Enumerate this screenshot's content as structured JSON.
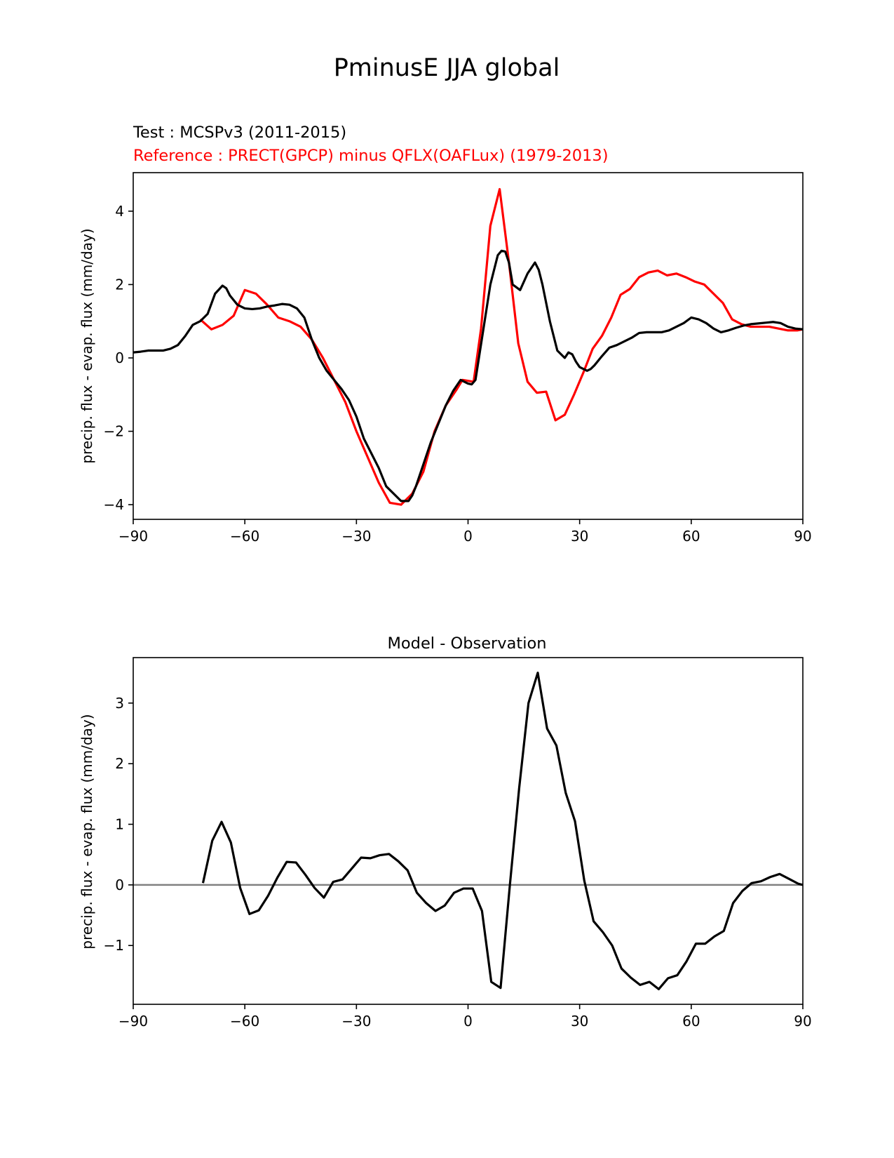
{
  "figure": {
    "suptitle": "PminusE JJA global"
  },
  "chart_data": [
    {
      "type": "line",
      "title_test": "Test : MCSPv3 (2011-2015)",
      "title_ref": "Reference : PRECT(GPCP) minus QFLX(OAFLux) (1979-2013)",
      "xlabel": "",
      "ylabel": "precip. flux - evap. flux (mm/day)",
      "xlim": [
        -90,
        90
      ],
      "ylim": [
        -4.4,
        5.05
      ],
      "xticks": [
        -90,
        -60,
        -30,
        0,
        30,
        60,
        90
      ],
      "xtick_labels": [
        "−90",
        "−60",
        "−30",
        "0",
        "30",
        "60",
        "90"
      ],
      "yticks": [
        -4,
        -2,
        0,
        2,
        4
      ],
      "ytick_labels": [
        "−4",
        "−2",
        "0",
        "2",
        "4"
      ],
      "colors": {
        "test": "#000000",
        "reference": "#ff0000"
      },
      "series": [
        {
          "key": "test",
          "x": [
            -90,
            -88,
            -86,
            -84,
            -82,
            -80,
            -78,
            -76,
            -74,
            -72,
            -70,
            -68,
            -66,
            -65,
            -64,
            -62,
            -60,
            -58,
            -56,
            -54,
            -52,
            -50,
            -48,
            -46,
            -44,
            -42,
            -40,
            -38,
            -36,
            -34,
            -32,
            -30,
            -28,
            -26,
            -24,
            -22,
            -20,
            -18,
            -16,
            -15,
            -14,
            -13,
            -12,
            -10,
            -8,
            -6,
            -4,
            -2,
            0,
            1,
            2,
            4,
            6,
            8,
            9,
            10,
            11,
            12,
            14,
            16,
            18,
            19,
            20,
            22,
            24,
            26,
            27,
            28,
            29,
            30,
            32,
            33,
            34,
            36,
            38,
            40,
            42,
            44,
            46,
            48,
            50,
            52,
            54,
            56,
            58,
            60,
            62,
            64,
            66,
            68,
            70,
            72,
            74,
            76,
            78,
            80,
            82,
            84,
            86,
            88,
            90
          ],
          "values": [
            0.15,
            0.17,
            0.2,
            0.2,
            0.2,
            0.25,
            0.35,
            0.6,
            0.9,
            1.0,
            1.2,
            1.75,
            1.97,
            1.9,
            1.7,
            1.45,
            1.35,
            1.33,
            1.35,
            1.4,
            1.43,
            1.47,
            1.45,
            1.35,
            1.1,
            0.5,
            0.0,
            -0.35,
            -0.6,
            -0.85,
            -1.15,
            -1.6,
            -2.2,
            -2.6,
            -3.0,
            -3.5,
            -3.7,
            -3.9,
            -3.9,
            -3.75,
            -3.5,
            -3.2,
            -2.9,
            -2.3,
            -1.8,
            -1.3,
            -0.9,
            -0.6,
            -0.7,
            -0.72,
            -0.6,
            0.7,
            2.0,
            2.8,
            2.92,
            2.9,
            2.6,
            2.0,
            1.85,
            2.3,
            2.6,
            2.4,
            2.0,
            1.0,
            0.2,
            0.0,
            0.15,
            0.1,
            -0.1,
            -0.25,
            -0.35,
            -0.3,
            -0.2,
            0.05,
            0.28,
            0.35,
            0.45,
            0.55,
            0.68,
            0.7,
            0.7,
            0.7,
            0.75,
            0.85,
            0.95,
            1.1,
            1.05,
            0.95,
            0.8,
            0.7,
            0.75,
            0.82,
            0.88,
            0.92,
            0.94,
            0.96,
            0.98,
            0.95,
            0.85,
            0.8,
            0.78
          ]
        },
        {
          "key": "reference",
          "x": [
            -72,
            -69,
            -66,
            -63,
            -60,
            -57,
            -54,
            -51,
            -48,
            -45,
            -42,
            -39,
            -36,
            -33,
            -30,
            -27,
            -24,
            -21,
            -18,
            -15,
            -12,
            -9,
            -6,
            -3,
            -1.5,
            1.5,
            3.5,
            6,
            8.5,
            11,
            13.5,
            16,
            18.5,
            21,
            23.5,
            26,
            28.5,
            31,
            33.5,
            36,
            38.5,
            41,
            43.5,
            46,
            48.5,
            51,
            53.5,
            56,
            58.5,
            61,
            63.5,
            66,
            68.5,
            71,
            73.5,
            76,
            78.5,
            81,
            83.5,
            86,
            88.5,
            90
          ],
          "values": [
            1.05,
            0.78,
            0.9,
            1.15,
            1.85,
            1.75,
            1.45,
            1.1,
            1.0,
            0.85,
            0.5,
            0.0,
            -0.6,
            -1.2,
            -2.0,
            -2.7,
            -3.4,
            -3.95,
            -4.0,
            -3.7,
            -3.1,
            -2.0,
            -1.3,
            -0.85,
            -0.6,
            -0.65,
            0.8,
            3.6,
            4.6,
            2.6,
            0.4,
            -0.65,
            -0.95,
            -0.92,
            -1.7,
            -1.55,
            -1.0,
            -0.4,
            0.25,
            0.6,
            1.1,
            1.72,
            1.88,
            2.2,
            2.33,
            2.38,
            2.25,
            2.3,
            2.2,
            2.08,
            2.0,
            1.75,
            1.5,
            1.05,
            0.92,
            0.85,
            0.85,
            0.85,
            0.8,
            0.75,
            0.75,
            0.78
          ]
        }
      ]
    },
    {
      "type": "line",
      "title": "Model - Observation",
      "xlabel": "",
      "ylabel": "precip. flux - evap. flux (mm/day)",
      "xlim": [
        -90,
        90
      ],
      "ylim": [
        -1.97,
        3.75
      ],
      "xticks": [
        -90,
        -60,
        -30,
        0,
        30,
        60,
        90
      ],
      "xtick_labels": [
        "−90",
        "−60",
        "−30",
        "0",
        "30",
        "60",
        "90"
      ],
      "yticks": [
        -1,
        0,
        1,
        2,
        3
      ],
      "ytick_labels": [
        "−1",
        "0",
        "1",
        "2",
        "3"
      ],
      "zero_line": true,
      "colors": {
        "diff": "#000000",
        "zero_line": "#808080"
      },
      "series": [
        {
          "key": "diff",
          "x": [
            -71.25,
            -68.75,
            -66.25,
            -63.75,
            -61.25,
            -58.75,
            -56.25,
            -53.75,
            -51.25,
            -48.75,
            -46.25,
            -43.75,
            -41.25,
            -38.75,
            -36.25,
            -33.75,
            -31.25,
            -28.75,
            -26.25,
            -23.75,
            -21.25,
            -18.75,
            -16.25,
            -13.75,
            -11.25,
            -8.75,
            -6.25,
            -3.75,
            -1.25,
            1.25,
            3.75,
            6.25,
            8.75,
            11.25,
            13.75,
            16.25,
            18.75,
            21.25,
            23.75,
            26.25,
            28.75,
            31.25,
            33.75,
            36.25,
            38.75,
            41.25,
            43.75,
            46.25,
            48.75,
            51.25,
            53.75,
            56.25,
            58.75,
            61.25,
            63.75,
            66.25,
            68.75,
            71.25,
            73.75,
            76.25,
            78.75,
            81.25,
            83.75,
            86.25,
            88.75,
            90
          ],
          "values": [
            0.03,
            0.73,
            1.04,
            0.7,
            -0.05,
            -0.48,
            -0.42,
            -0.18,
            0.12,
            0.38,
            0.37,
            0.17,
            -0.05,
            -0.21,
            0.05,
            0.09,
            0.27,
            0.45,
            0.44,
            0.49,
            0.51,
            0.39,
            0.24,
            -0.13,
            -0.3,
            -0.43,
            -0.34,
            -0.13,
            -0.06,
            -0.06,
            -0.43,
            -1.6,
            -1.7,
            0.0,
            1.6,
            3.0,
            3.5,
            2.58,
            2.3,
            1.52,
            1.05,
            0.07,
            -0.6,
            -0.78,
            -1.0,
            -1.38,
            -1.53,
            -1.65,
            -1.6,
            -1.72,
            -1.54,
            -1.49,
            -1.26,
            -0.97,
            -0.97,
            -0.85,
            -0.76,
            -0.3,
            -0.1,
            0.03,
            0.06,
            0.13,
            0.18,
            0.1,
            0.02,
            0.0
          ]
        }
      ]
    }
  ]
}
